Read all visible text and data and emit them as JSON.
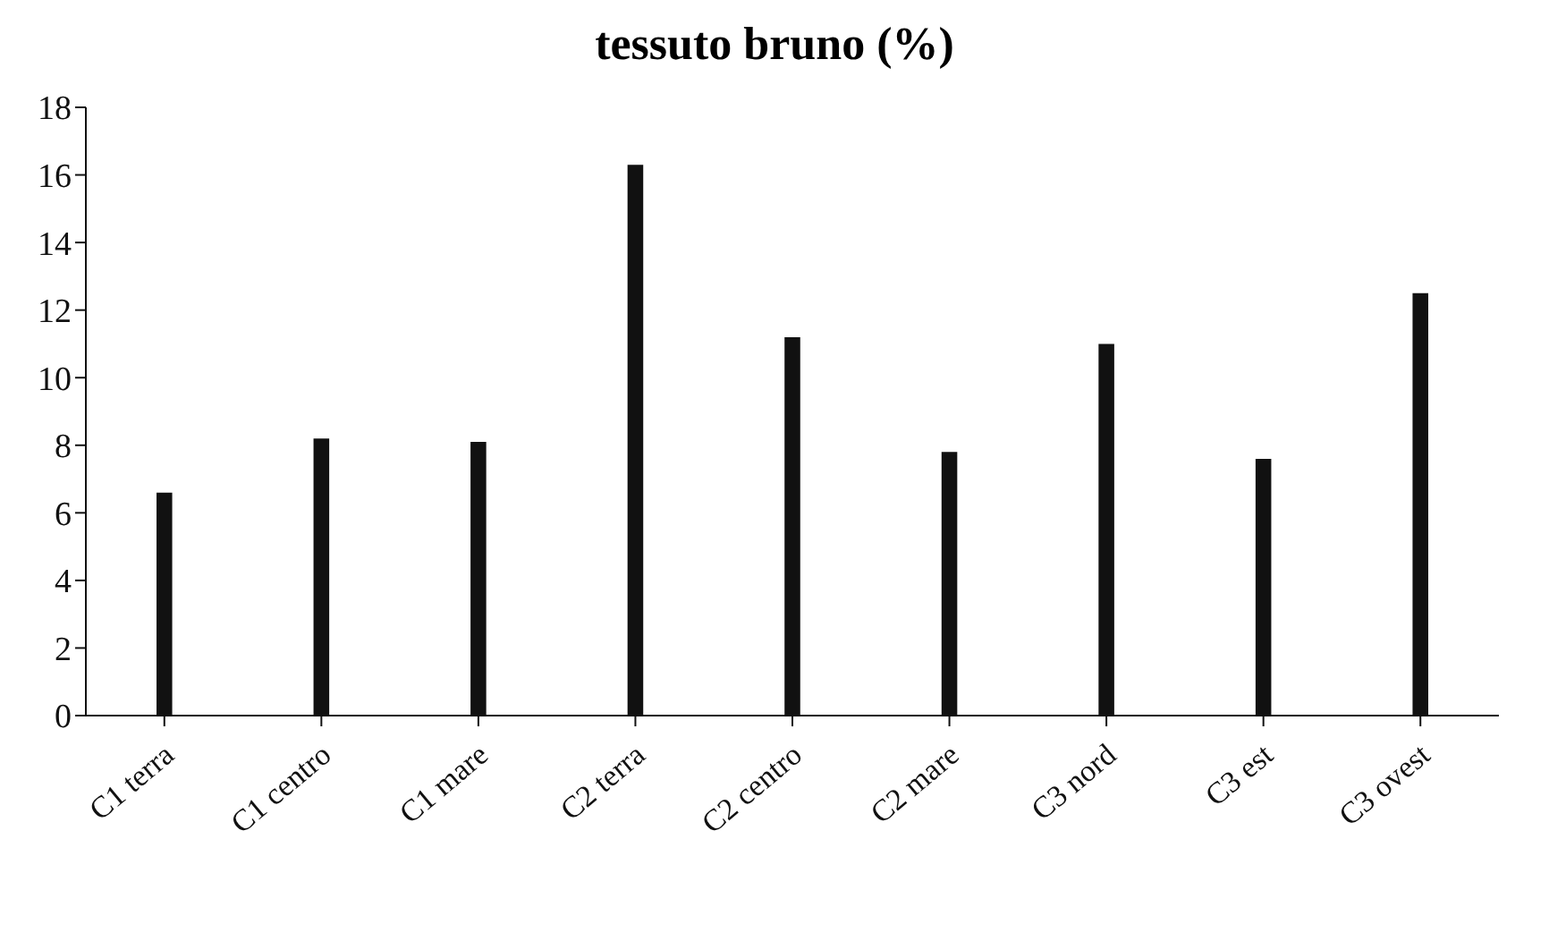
{
  "chart_data": {
    "type": "bar",
    "title": "tessuto bruno (%)",
    "categories": [
      "C1 terra",
      "C1 centro",
      "C1 mare",
      "C2 terra",
      "C2 centro",
      "C2 mare",
      "C3 nord",
      "C3 est",
      "C3 ovest"
    ],
    "values": [
      6.6,
      8.2,
      8.1,
      16.3,
      11.2,
      7.8,
      11,
      7.6,
      12.5
    ],
    "color": "#111111",
    "ylim": [
      0,
      18
    ],
    "yticks": [
      0,
      2,
      4,
      6,
      8,
      10,
      12,
      14,
      16,
      18
    ],
    "grid": false,
    "legend": false
  }
}
